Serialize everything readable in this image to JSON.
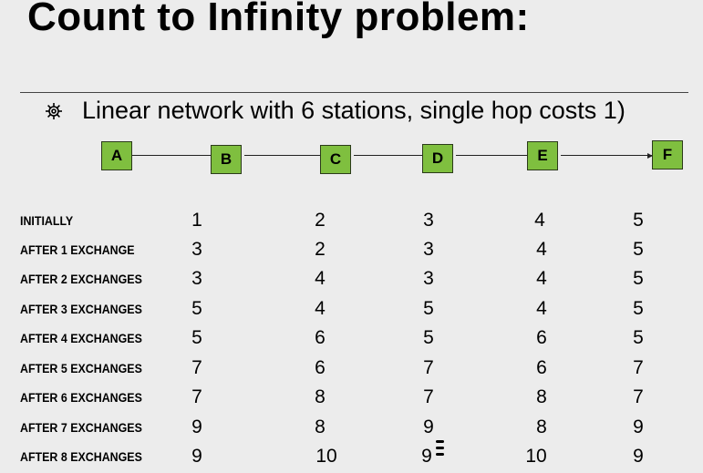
{
  "title": "Count to Infinity problem:",
  "bullet": {
    "icon": "gear-bullet-icon",
    "text": "Linear network with 6 stations, single hop costs 1)"
  },
  "network": {
    "nodes": [
      "A",
      "B",
      "C",
      "D",
      "E",
      "F"
    ],
    "node_color": "#7fbf3f"
  },
  "table": {
    "rows": [
      {
        "label": "INITIALLY",
        "values": [
          "1",
          "2",
          "3",
          "4",
          "5"
        ]
      },
      {
        "label": "AFTER 1 EXCHANGE",
        "values": [
          "3",
          "2",
          "3",
          "4",
          "5"
        ]
      },
      {
        "label": "AFTER 2 EXCHANGES",
        "values": [
          "3",
          "4",
          "3",
          "4",
          "5"
        ]
      },
      {
        "label": "AFTER 3 EXCHANGES",
        "values": [
          "5",
          "4",
          "5",
          "4",
          "5"
        ]
      },
      {
        "label": "AFTER 4 EXCHANGES",
        "values": [
          "5",
          "6",
          "5",
          "6",
          "5"
        ]
      },
      {
        "label": "AFTER 5 EXCHANGES",
        "values": [
          "7",
          "6",
          "7",
          "6",
          "7"
        ]
      },
      {
        "label": "AFTER 6 EXCHANGES",
        "values": [
          "7",
          "8",
          "7",
          "8",
          "7"
        ]
      },
      {
        "label": "AFTER 7 EXCHANGES",
        "values": [
          "9",
          "8",
          "9",
          "8",
          "9"
        ]
      },
      {
        "label": "AFTER 8 EXCHANGES",
        "values": [
          "9",
          "10",
          "9",
          "10",
          "9"
        ]
      }
    ]
  }
}
